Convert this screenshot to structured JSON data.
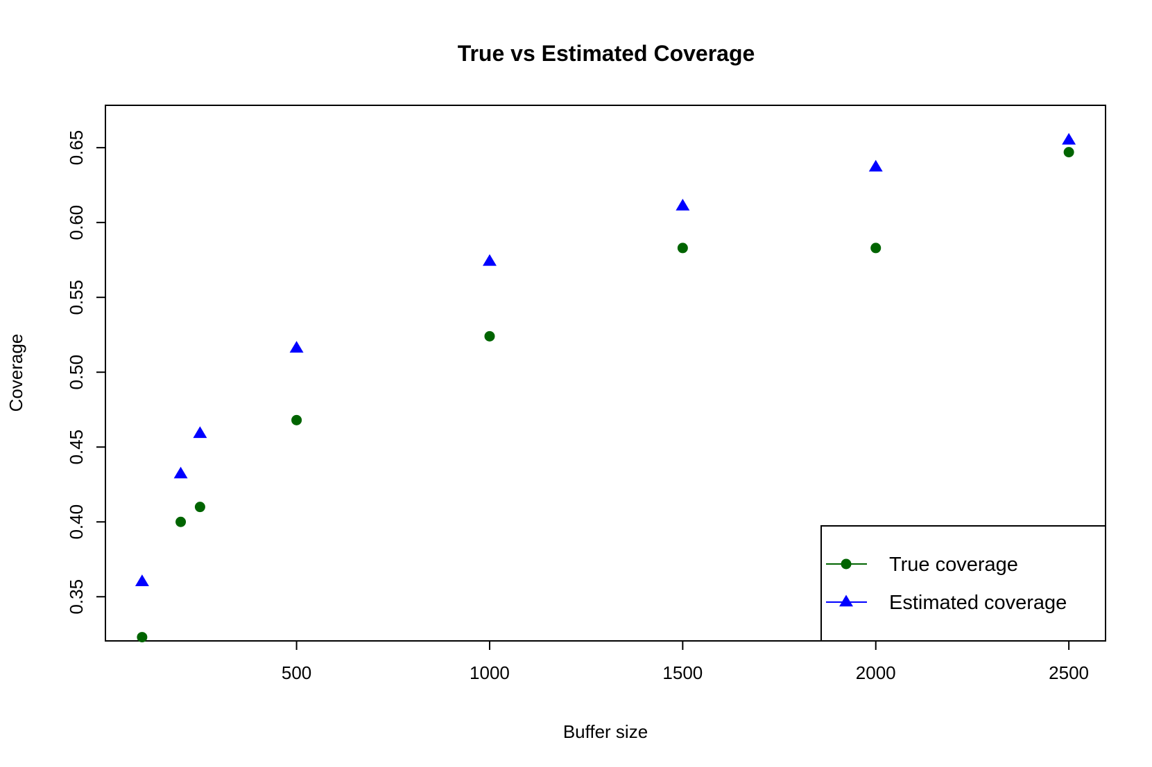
{
  "chart_data": {
    "type": "scatter",
    "title": "True vs Estimated Coverage",
    "xlabel": "Buffer size",
    "ylabel": "Coverage",
    "xlim": [
      5,
      2595
    ],
    "ylim": [
      0.3205,
      0.6783
    ],
    "x_ticks": [
      500,
      1000,
      1500,
      2000,
      2500
    ],
    "y_ticks": [
      0.35,
      0.4,
      0.45,
      0.5,
      0.55,
      0.6,
      0.65
    ],
    "grid": false,
    "legend_position": "bottom-right",
    "series": [
      {
        "name": "True coverage",
        "color": "#006400",
        "marker": "circle",
        "points": [
          {
            "x": 100,
            "y": 0.323
          },
          {
            "x": 200,
            "y": 0.4
          },
          {
            "x": 250,
            "y": 0.41
          },
          {
            "x": 500,
            "y": 0.468
          },
          {
            "x": 1000,
            "y": 0.524
          },
          {
            "x": 1500,
            "y": 0.583
          },
          {
            "x": 2000,
            "y": 0.583
          },
          {
            "x": 2500,
            "y": 0.647
          }
        ]
      },
      {
        "name": "Estimated coverage",
        "color": "#0000ff",
        "marker": "triangle",
        "points": [
          {
            "x": 100,
            "y": 0.36
          },
          {
            "x": 200,
            "y": 0.432
          },
          {
            "x": 250,
            "y": 0.459
          },
          {
            "x": 500,
            "y": 0.516
          },
          {
            "x": 1000,
            "y": 0.574
          },
          {
            "x": 1500,
            "y": 0.611
          },
          {
            "x": 2000,
            "y": 0.637
          },
          {
            "x": 2500,
            "y": 0.655
          }
        ]
      }
    ]
  }
}
